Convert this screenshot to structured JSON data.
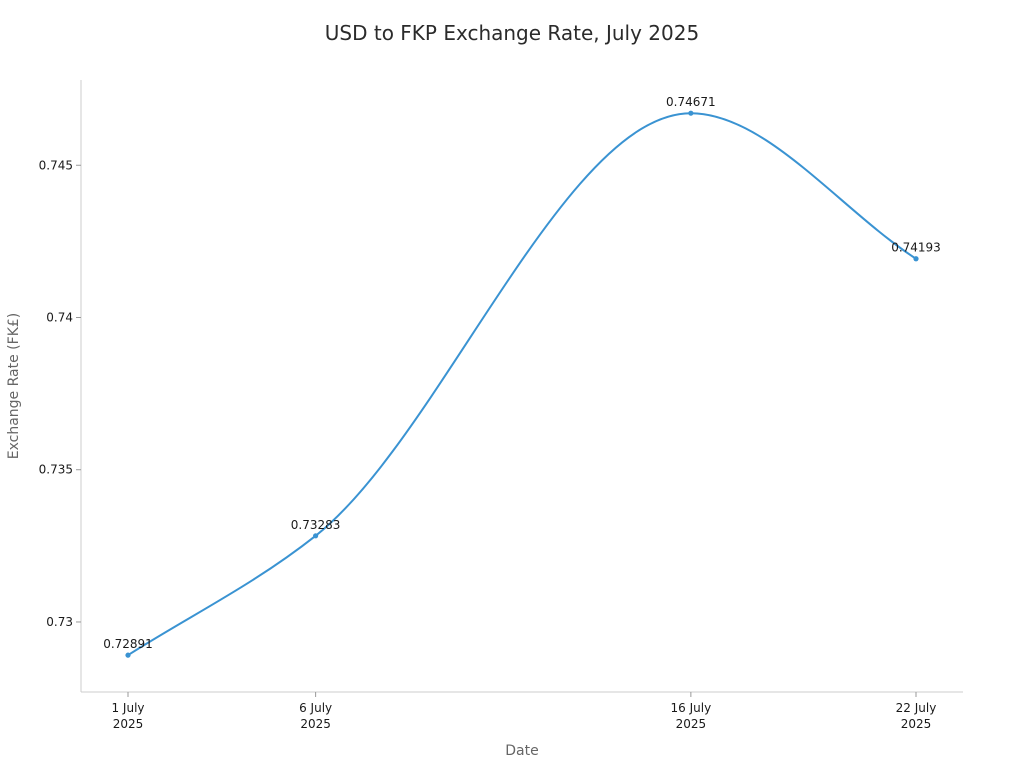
{
  "chart_data": {
    "type": "line",
    "title": "USD to FKP Exchange Rate, July 2025",
    "xlabel": "Date",
    "ylabel": "Exchange Rate (FK£)",
    "x": [
      "2025-07-01",
      "2025-07-06",
      "2025-07-16",
      "2025-07-22"
    ],
    "x_tick_labels": [
      [
        "1 July",
        "2025"
      ],
      [
        "6 July",
        "2025"
      ],
      [
        "16 July",
        "2025"
      ],
      [
        "22 July",
        "2025"
      ]
    ],
    "series": [
      {
        "values": [
          0.72891,
          0.73283,
          0.74671,
          0.74193
        ],
        "labels": [
          "0.72891",
          "0.73283",
          "0.74671",
          "0.74193"
        ],
        "color": "#3a93d2"
      }
    ],
    "ylim": [
      0.7277,
      0.7478
    ],
    "y_ticks": [
      0.73,
      0.735,
      0.74,
      0.745
    ],
    "y_tick_labels": [
      "0.73",
      "0.735",
      "0.74",
      "0.745"
    ],
    "grid": false,
    "legend": "none",
    "smooth": true
  }
}
